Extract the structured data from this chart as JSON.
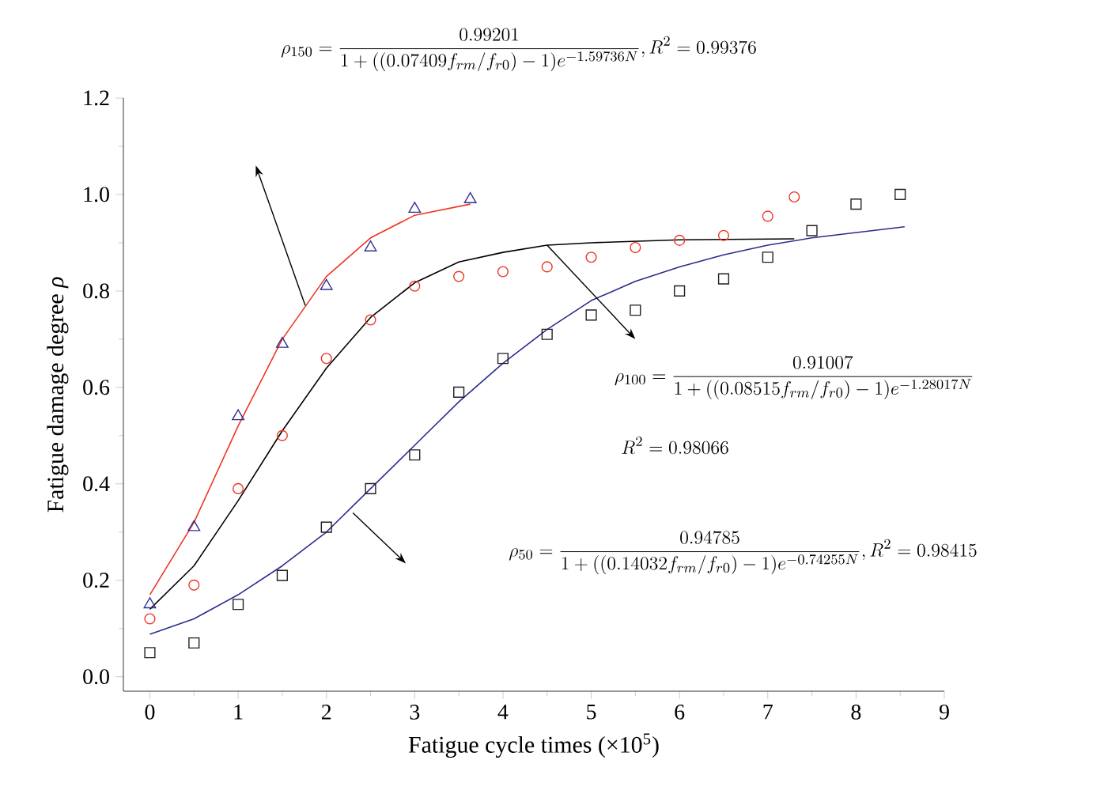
{
  "chart_data": {
    "type": "scatter",
    "xlabel": "Fatigue cycle times (×10$^{5}$)",
    "ylabel": "Fatigue damage degree *ρ*",
    "xlim": [
      -0.3,
      9
    ],
    "ylim": [
      -0.03,
      1.2
    ],
    "xticks": [
      0,
      1,
      2,
      3,
      4,
      5,
      6,
      7,
      8,
      9
    ],
    "yticks": [
      {
        "value": 0,
        "label": "0.0"
      },
      {
        "value": 0.2,
        "label": "0.2"
      },
      {
        "value": 0.4,
        "label": "0.4"
      },
      {
        "value": 0.6,
        "label": "0.6"
      },
      {
        "value": 0.8,
        "label": "0.8"
      },
      {
        "value": 1.0,
        "label": "1.0"
      },
      {
        "value": 1.2,
        "label": "1.2"
      }
    ],
    "series": [
      {
        "marker": "triangle",
        "color": "#2e3192",
        "x": [
          0,
          0.5,
          1,
          1.5,
          2,
          2.5,
          3,
          3.63
        ],
        "values": [
          0.15,
          0.31,
          0.54,
          0.69,
          0.81,
          0.89,
          0.97,
          0.99
        ]
      },
      {
        "marker": "circle",
        "color": "#ee3524",
        "x": [
          0,
          0.5,
          1,
          1.5,
          2,
          2.5,
          3,
          3.5,
          4,
          4.5,
          5,
          5.5,
          6,
          6.5,
          7,
          7.3
        ],
        "values": [
          0.12,
          0.19,
          0.39,
          0.5,
          0.66,
          0.74,
          0.81,
          0.83,
          0.84,
          0.85,
          0.87,
          0.89,
          0.905,
          0.915,
          0.955,
          0.995
        ]
      },
      {
        "marker": "square",
        "color": "#231f20",
        "x": [
          0,
          0.5,
          1,
          1.5,
          2,
          2.5,
          3,
          3.5,
          4,
          4.5,
          5,
          5.5,
          6,
          6.5,
          7,
          7.5,
          8,
          8.5
        ],
        "values": [
          0.05,
          0.07,
          0.15,
          0.21,
          0.31,
          0.39,
          0.46,
          0.59,
          0.66,
          0.71,
          0.75,
          0.76,
          0.8,
          0.825,
          0.87,
          0.925,
          0.98,
          1.0
        ]
      },
      {
        "type": "line",
        "marker": "none",
        "color": "#ee3524",
        "x": [
          0,
          0.5,
          1,
          1.5,
          2,
          2.5,
          3,
          3.63
        ],
        "values": [
          0.17,
          0.32,
          0.52,
          0.7,
          0.83,
          0.91,
          0.957,
          0.98
        ]
      },
      {
        "type": "line",
        "marker": "none",
        "color": "#000000",
        "x": [
          0,
          0.5,
          1,
          1.5,
          2,
          2.5,
          3,
          3.5,
          4,
          4.5,
          5,
          6,
          7.3
        ],
        "values": [
          0.14,
          0.23,
          0.365,
          0.51,
          0.64,
          0.745,
          0.817,
          0.86,
          0.88,
          0.895,
          0.9,
          0.906,
          0.908
        ]
      },
      {
        "type": "line",
        "marker": "none",
        "color": "#2b2b8f",
        "x": [
          0,
          0.5,
          1,
          1.5,
          2,
          2.5,
          3,
          3.5,
          4,
          4.5,
          5,
          5.5,
          6,
          6.5,
          7,
          7.5,
          8.55
        ],
        "values": [
          0.088,
          0.12,
          0.17,
          0.23,
          0.3,
          0.39,
          0.48,
          0.57,
          0.65,
          0.72,
          0.78,
          0.82,
          0.85,
          0.875,
          0.895,
          0.91,
          0.933
        ]
      }
    ],
    "annotations": [
      "\\rho_{150} = \\frac{0.99201}{1+((0.07409 f_{rm}/f_{r0})-1)e^{-1.59736N}}, R^2 = 0.99376",
      "\\rho_{100} = \\frac{0.91007}{1+((0.08515 f_{rm}/f_{r0})-1)e^{-1.28017N}}",
      "R^2 = 0.98066",
      "\\rho_{50} = \\frac{0.94785}{1+((0.14032 f_{rm}/f_{r0})-1)e^{-0.74255N}}, R^2 = 0.98415"
    ]
  }
}
